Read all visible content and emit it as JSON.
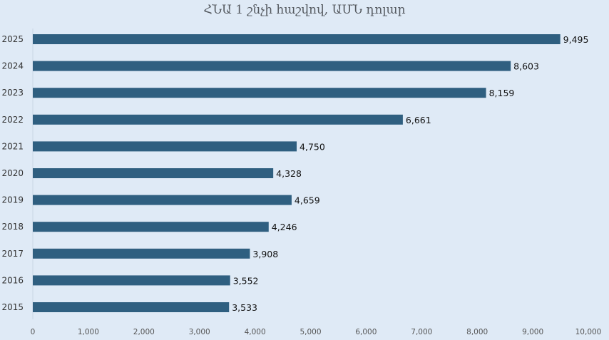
{
  "chart_data": {
    "type": "bar",
    "orientation": "horizontal",
    "title": "ՀՆԱ 1 շնչի հաշվով, ԱՄՆ դոլար",
    "categories": [
      "2025",
      "2024",
      "2023",
      "2022",
      "2021",
      "2020",
      "2019",
      "2018",
      "2017",
      "2016",
      "2015"
    ],
    "values": [
      9495,
      8603,
      8159,
      6661,
      4750,
      4328,
      4659,
      4246,
      3908,
      3552,
      3533
    ],
    "value_labels": [
      "9,495",
      "8,603",
      "8,159",
      "6,661",
      "4,750",
      "4,328",
      "4,659",
      "4,246",
      "3,908",
      "3,552",
      "3,533"
    ],
    "highlight_index": 0,
    "xlim": [
      0,
      10000
    ],
    "x_ticks": [
      0,
      1000,
      2000,
      3000,
      4000,
      5000,
      6000,
      7000,
      8000,
      9000,
      10000
    ],
    "x_tick_labels": [
      "0",
      "1,000",
      "2,000",
      "3,000",
      "4,000",
      "5,000",
      "6,000",
      "7,000",
      "8,000",
      "9,000",
      "10,000"
    ],
    "grid": false,
    "legend": "none",
    "colors": {
      "bar": "#2f5f80",
      "highlight_label": "#c0392b",
      "label": "#111111",
      "background": "#dfeaf6"
    }
  }
}
